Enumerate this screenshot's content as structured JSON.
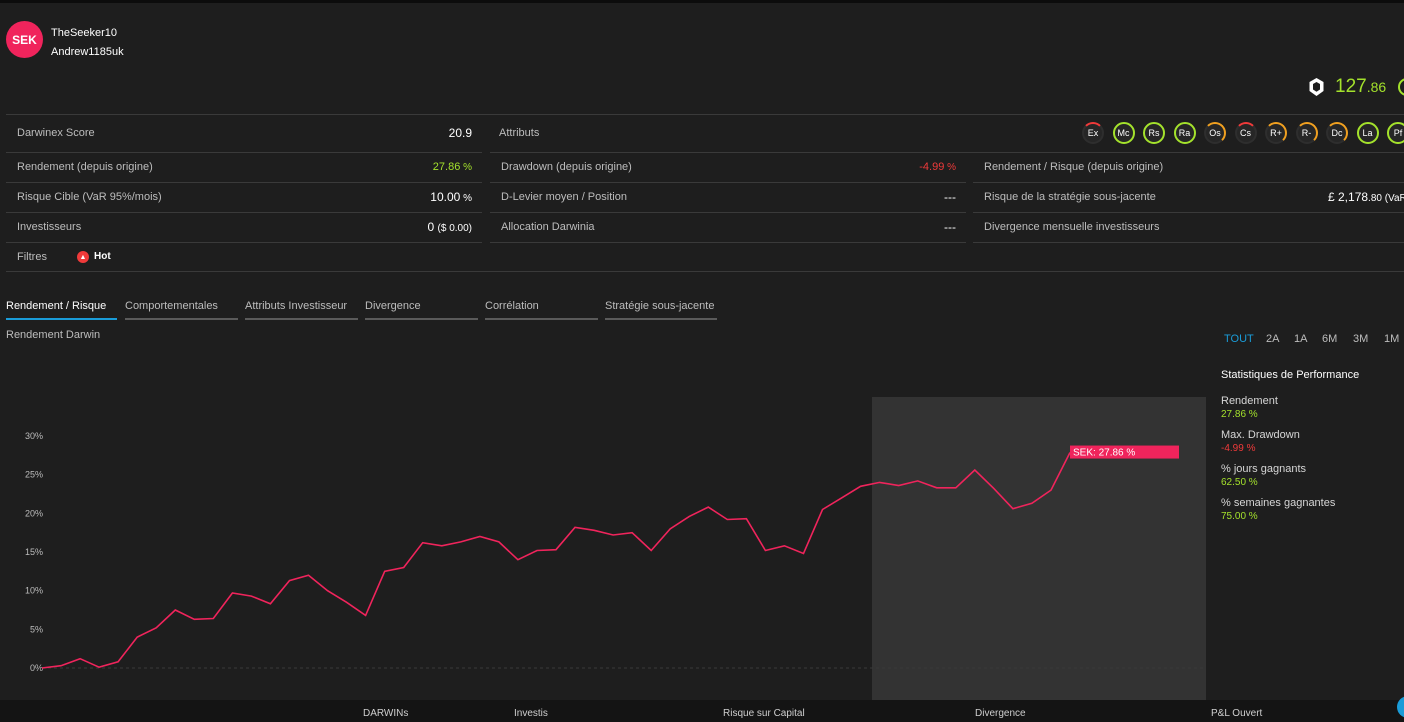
{
  "header": {
    "badge": "SEK",
    "trader": "TheSeeker10",
    "investor": "Andrew1185uk",
    "score_main": "127",
    "score_dec": ".86"
  },
  "metrics": {
    "darwinex_score_label": "Darwinex Score",
    "darwinex_score_value": "20.9",
    "attributs_label": "Attributs",
    "rendement_label": "Rendement (depuis origine)",
    "rendement_value": "27.86",
    "drawdown_label": "Drawdown (depuis origine)",
    "drawdown_value": "-4.99",
    "rendement_risque_label": "Rendement / Risque (depuis origine)",
    "risque_cible_label": "Risque Cible (VaR 95%/mois)",
    "risque_cible_value": "10.00",
    "d_levier_label": "D-Levier moyen / Position",
    "d_levier_value": "---",
    "risque_strategie_label": "Risque de la stratégie sous-jacente",
    "risque_strategie_value": "£ 2,178",
    "risque_strategie_small": ".80 (VaR",
    "investisseurs_label": "Investisseurs",
    "investisseurs_value": "0",
    "investisseurs_small": "($ 0.00)",
    "allocation_label": "Allocation Darwinia",
    "allocation_value": "---",
    "divergence_label": "Divergence mensuelle investisseurs",
    "filtres_label": "Filtres",
    "hot_label": "Hot",
    "percent_sign": " %"
  },
  "attributes": [
    {
      "label": "Ex",
      "status": "red"
    },
    {
      "label": "Mc",
      "status": "green"
    },
    {
      "label": "Rs",
      "status": "green"
    },
    {
      "label": "Ra",
      "status": "green"
    },
    {
      "label": "Os",
      "status": "orange"
    },
    {
      "label": "Cs",
      "status": "red"
    },
    {
      "label": "R+",
      "status": "orange"
    },
    {
      "label": "R-",
      "status": "orange"
    },
    {
      "label": "Dc",
      "status": "orange"
    },
    {
      "label": "La",
      "status": "green"
    },
    {
      "label": "Pf",
      "status": "green"
    }
  ],
  "tabs": [
    "Rendement / Risque",
    "Comportementales",
    "Attributs Investisseur",
    "Divergence",
    "Corrélation",
    "Stratégie sous-jacente"
  ],
  "chart_title": "Rendement Darwin",
  "ranges": [
    "TOUT",
    "2A",
    "1A",
    "6M",
    "3M",
    "1M"
  ],
  "stats": {
    "heading": "Statistiques de Performance",
    "items": [
      {
        "label": "Rendement",
        "value": "27.86 %",
        "color": "#a4e22c"
      },
      {
        "label": "Max. Drawdown",
        "value": "-4.99 %",
        "color": "#f03a3a"
      },
      {
        "label": "% jours gagnants",
        "value": "62.50 %",
        "color": "#a4e22c"
      },
      {
        "label": "% semaines gagnantes",
        "value": "75.00 %",
        "color": "#a4e22c"
      }
    ]
  },
  "footer": [
    "DARWINs",
    "Investis",
    "Risque sur Capital",
    "Divergence",
    "P&L Ouvert"
  ],
  "colors": {
    "line": "#f0245c",
    "green": "#a4e22c",
    "red": "#f03a3a",
    "accent": "#1a9cd8"
  },
  "chart_data": {
    "type": "line",
    "title": "Rendement Darwin",
    "yticks": [
      "0%",
      "5%",
      "10%",
      "15%",
      "20%",
      "25%",
      "30%"
    ],
    "ylim": [
      0,
      30
    ],
    "series": [
      {
        "name": "SEK",
        "values": [
          0.0,
          0.3,
          1.2,
          0.1,
          0.8,
          4.0,
          5.2,
          7.5,
          6.3,
          6.4,
          9.7,
          9.3,
          8.3,
          11.3,
          12.0,
          10.0,
          8.5,
          6.8,
          12.5,
          13.0,
          16.2,
          15.8,
          16.3,
          17.0,
          16.3,
          14.0,
          15.2,
          15.3,
          18.2,
          17.8,
          17.2,
          17.5,
          15.2,
          18.0,
          19.6,
          20.8,
          19.2,
          19.3,
          15.2,
          15.8,
          14.8,
          20.5,
          22.0,
          23.5,
          24.0,
          23.6,
          24.2,
          23.3,
          23.3,
          25.6,
          23.2,
          20.6,
          21.3,
          23.0,
          27.86
        ]
      }
    ],
    "annotation": "SEK: 27.86 %"
  }
}
